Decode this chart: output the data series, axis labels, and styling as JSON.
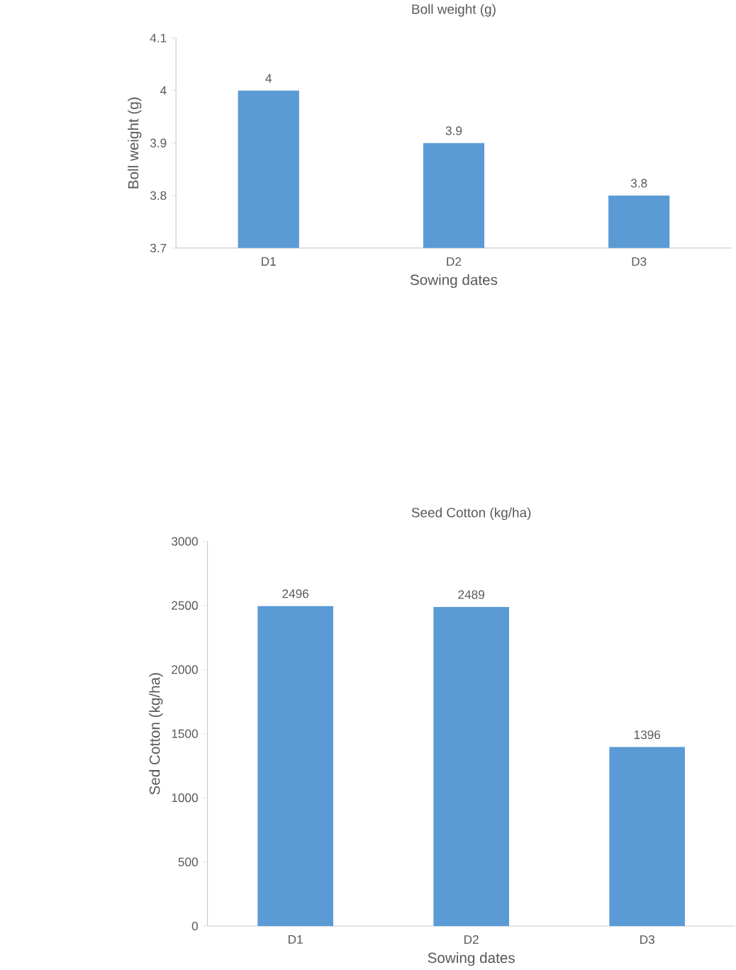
{
  "chart_data": [
    {
      "type": "bar",
      "title": "Boll weight (g)",
      "xlabel": "Sowing dates",
      "ylabel": "Boll weight (g)",
      "categories": [
        "D1",
        "D2",
        "D3"
      ],
      "values": [
        4,
        3.9,
        3.8
      ],
      "color": "#5b9bd5",
      "ylim": [
        3.7,
        4.1
      ],
      "yticks": [
        3.7,
        3.8,
        3.9,
        4,
        4.1
      ],
      "data_labels": true
    },
    {
      "type": "bar",
      "title": "Seed Cotton (kg/ha)",
      "xlabel": "Sowing dates",
      "ylabel": "Sed Cotton (kg/ha)",
      "categories": [
        "D1",
        "D2",
        "D3"
      ],
      "values": [
        2496,
        2489,
        1396
      ],
      "color": "#5b9bd5",
      "ylim": [
        0,
        3000
      ],
      "yticks": [
        0,
        500,
        1000,
        1500,
        2000,
        2500,
        3000
      ],
      "data_labels": true
    }
  ]
}
